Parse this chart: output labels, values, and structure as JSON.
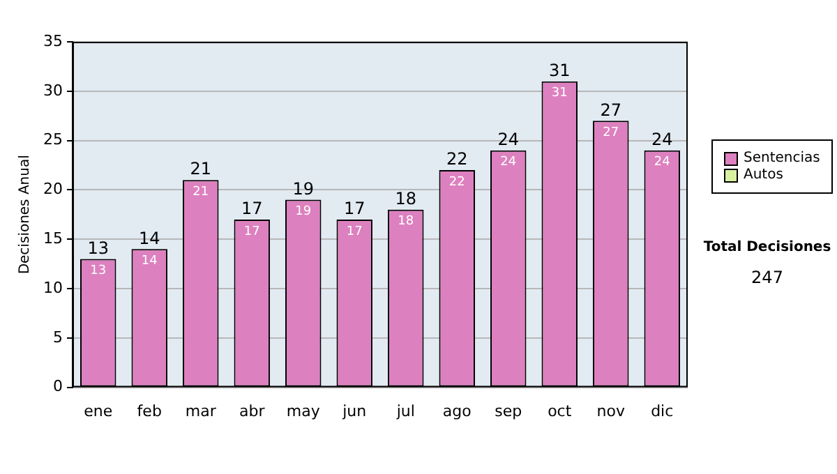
{
  "chart_data": {
    "type": "bar",
    "ylabel": "Decisiones Anual",
    "categories": [
      "ene",
      "feb",
      "mar",
      "abr",
      "may",
      "jun",
      "jul",
      "ago",
      "sep",
      "oct",
      "nov",
      "dic"
    ],
    "series": [
      {
        "name": "Sentencias",
        "color": "#dd80bf",
        "values": [
          13,
          14,
          21,
          17,
          19,
          17,
          18,
          22,
          24,
          31,
          27,
          24
        ],
        "value_labels": [
          "13",
          "14",
          "21",
          "17",
          "19",
          "17",
          "18",
          "22",
          "24",
          "31",
          "27",
          "24"
        ]
      },
      {
        "name": "Autos",
        "color": "#d8f0a0",
        "values": [
          0,
          0,
          0,
          0,
          0,
          0,
          0,
          0,
          0,
          0,
          0,
          0
        ],
        "value_labels": [
          null,
          null,
          null,
          null,
          null,
          null,
          null,
          null,
          null,
          null,
          null,
          null
        ]
      }
    ],
    "stacked": true,
    "totals": [
      "13",
      "14",
      "21",
      "17",
      "19",
      "17",
      "18",
      "22",
      "24",
      "31",
      "27",
      "24"
    ],
    "ylim": [
      0,
      35
    ],
    "yticks": [
      0,
      5,
      10,
      15,
      20,
      25,
      30,
      35
    ],
    "grid": "y",
    "legend": "right",
    "annotations": [
      "Total Decisiones",
      "247"
    ]
  }
}
